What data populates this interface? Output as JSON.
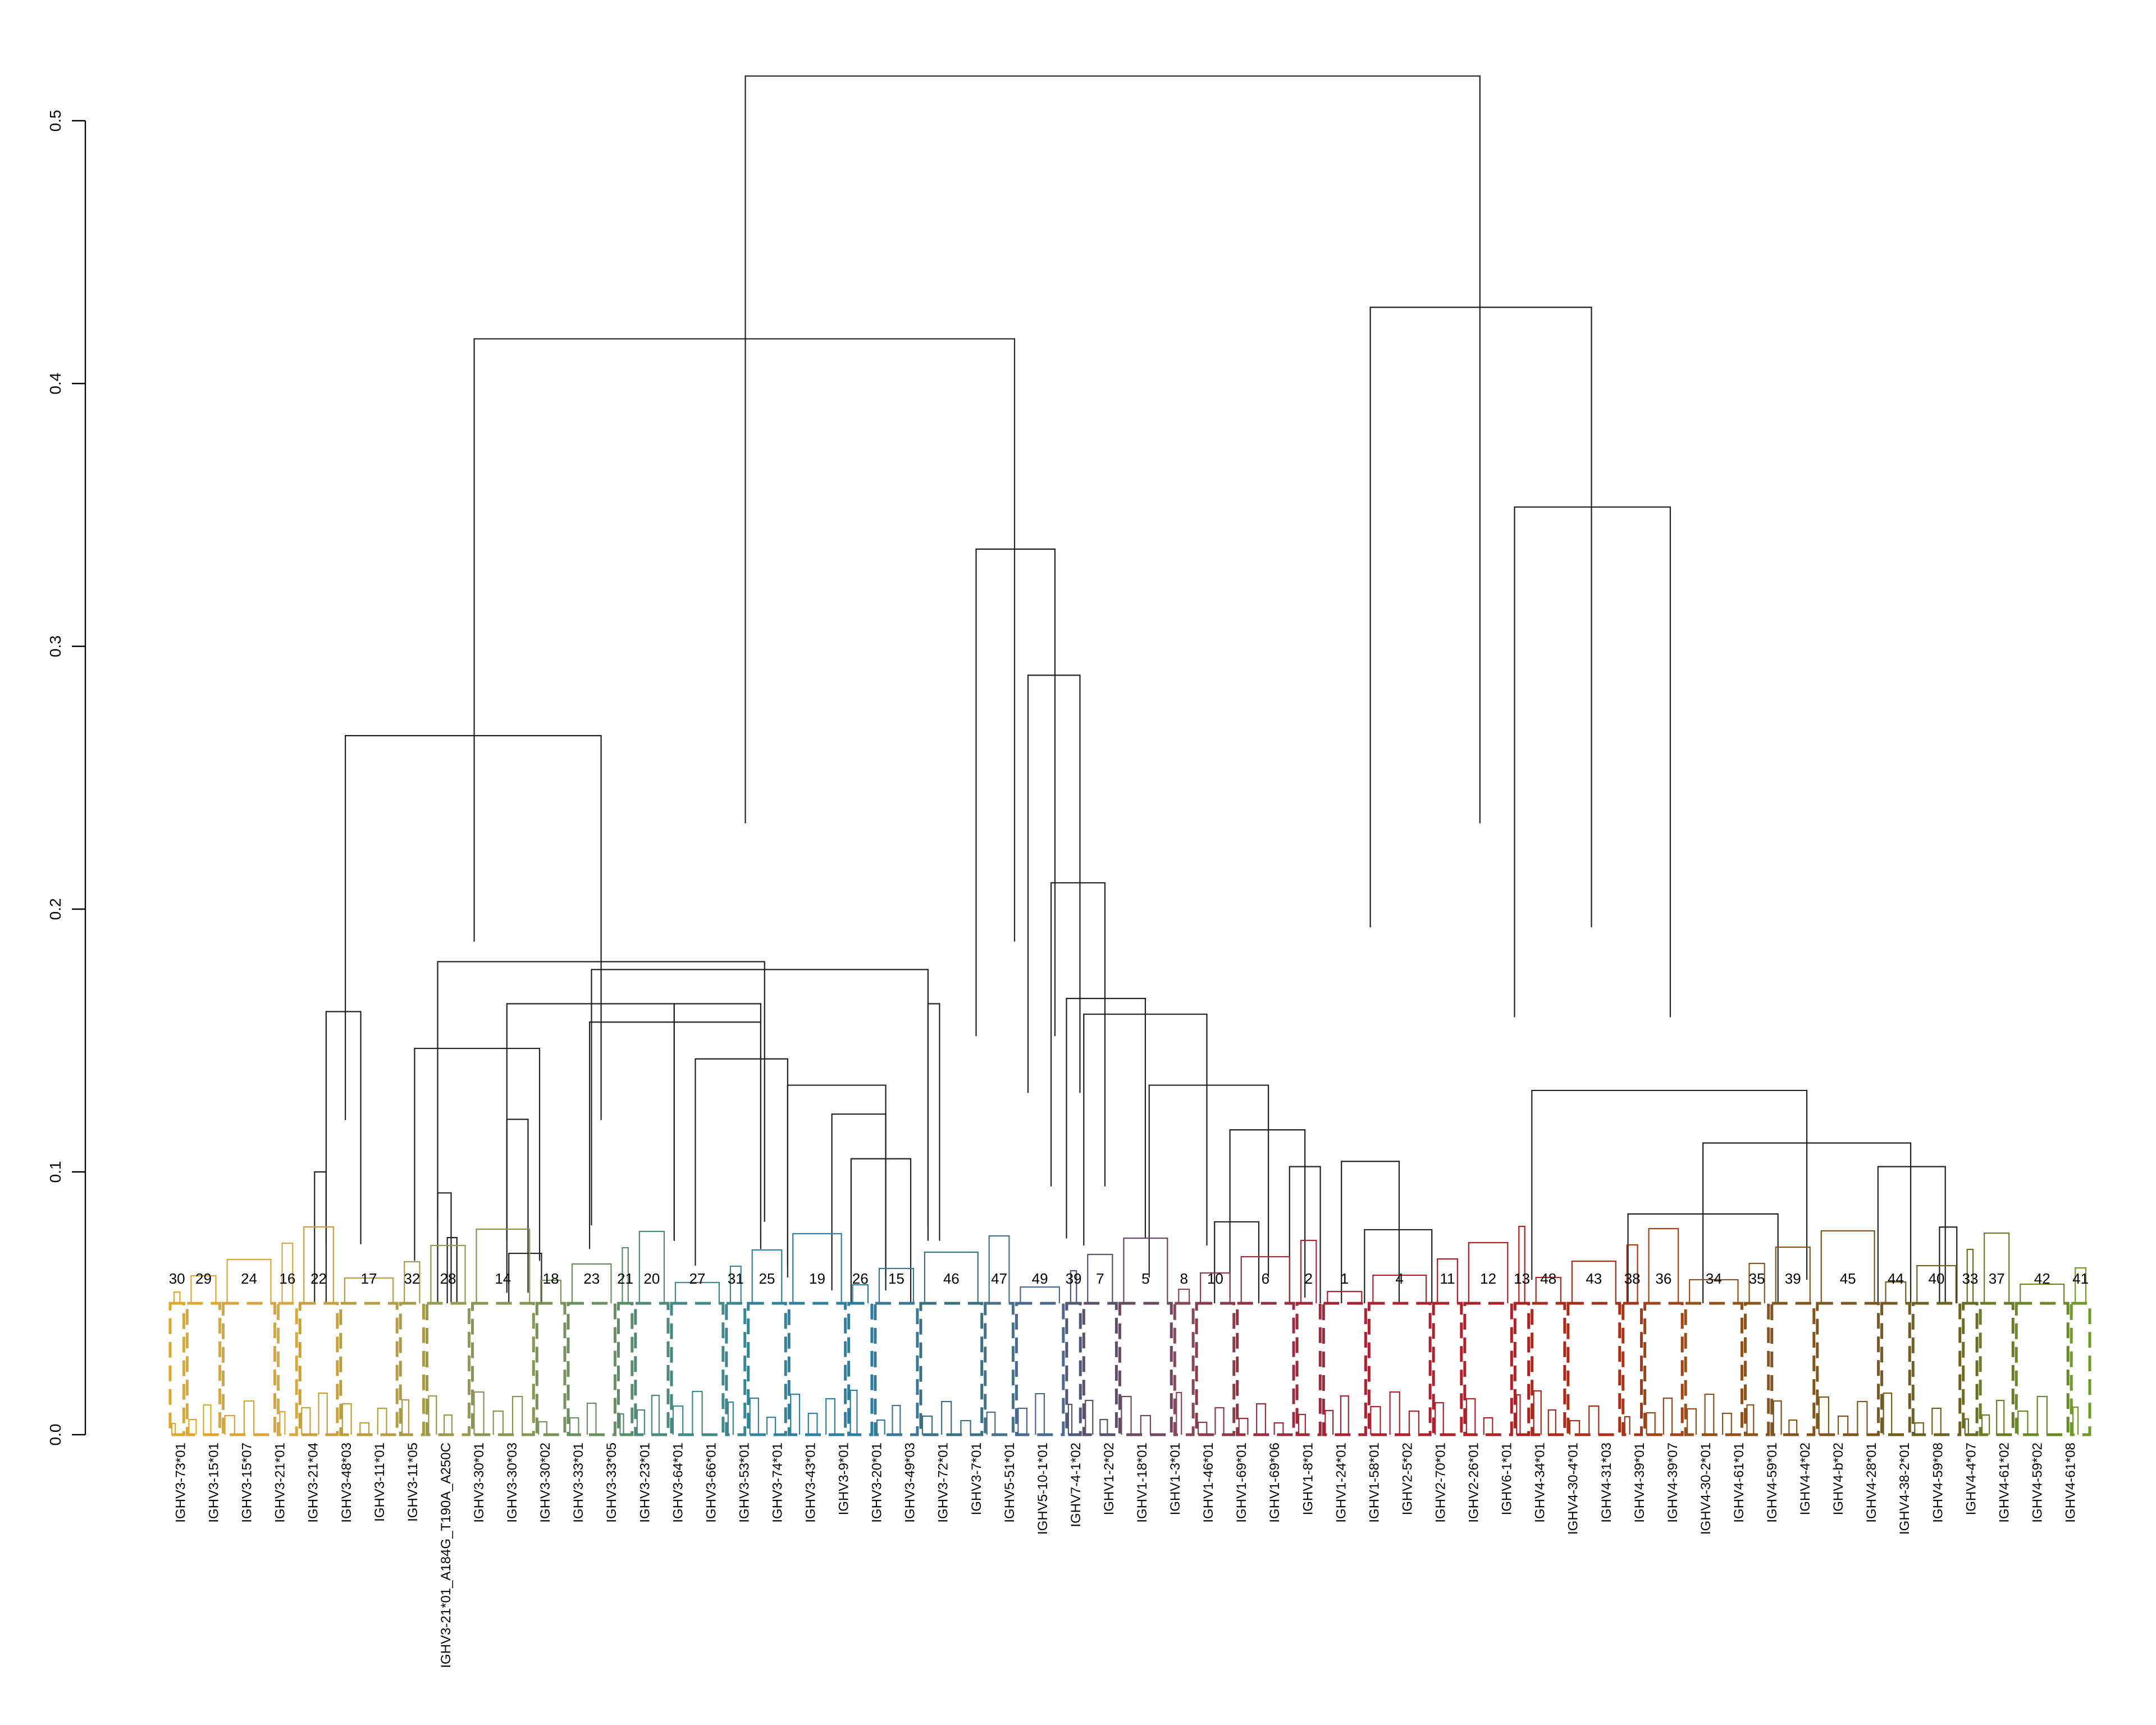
{
  "chart_data": {
    "type": "dendrogram",
    "title": "",
    "xlabel": "",
    "ylabel": "",
    "ylim": [
      0,
      0.52
    ],
    "y_ticks": [
      "0.0",
      "0.1",
      "0.2",
      "0.3",
      "0.4",
      "0.5"
    ],
    "cut_height": 0.05,
    "merges": [
      {
        "x1": 0.082,
        "x2": 0.1,
        "height": 0.161
      },
      {
        "x1": 0.076,
        "x2": 0.082,
        "height": 0.1
      },
      {
        "x1": 0.128,
        "x2": 0.193,
        "height": 0.147
      },
      {
        "x1": 0.092,
        "x2": 0.225,
        "height": 0.266
      },
      {
        "x1": 0.14,
        "x2": 0.147,
        "height": 0.092
      },
      {
        "x1": 0.145,
        "x2": 0.15,
        "height": 0.075
      },
      {
        "x1": 0.176,
        "x2": 0.187,
        "height": 0.12
      },
      {
        "x1": 0.177,
        "x2": 0.194,
        "height": 0.069
      },
      {
        "x1": 0.176,
        "x2": 0.263,
        "height": 0.164
      },
      {
        "x1": 0.22,
        "x2": 0.395,
        "height": 0.177
      },
      {
        "x1": 0.14,
        "x2": 0.31,
        "height": 0.18
      },
      {
        "x1": 0.219,
        "x2": 0.308,
        "height": 0.157
      },
      {
        "x1": 0.263,
        "x2": 0.308,
        "height": 0.164
      },
      {
        "x1": 0.274,
        "x2": 0.322,
        "height": 0.143
      },
      {
        "x1": 0.322,
        "x2": 0.373,
        "height": 0.133
      },
      {
        "x1": 0.345,
        "x2": 0.373,
        "height": 0.122
      },
      {
        "x1": 0.355,
        "x2": 0.386,
        "height": 0.105
      },
      {
        "x1": 0.395,
        "x2": 0.401,
        "height": 0.164
      },
      {
        "x1": 0.159,
        "x2": 0.44,
        "height": 0.417
      },
      {
        "x1": 0.42,
        "x2": 0.461,
        "height": 0.337
      },
      {
        "x1": 0.447,
        "x2": 0.474,
        "height": 0.289
      },
      {
        "x1": 0.459,
        "x2": 0.487,
        "height": 0.21
      },
      {
        "x1": 0.467,
        "x2": 0.508,
        "height": 0.166
      },
      {
        "x1": 0.476,
        "x2": 0.54,
        "height": 0.16
      },
      {
        "x1": 0.51,
        "x2": 0.572,
        "height": 0.133
      },
      {
        "x1": 0.552,
        "x2": 0.591,
        "height": 0.116
      },
      {
        "x1": 0.544,
        "x2": 0.567,
        "height": 0.081
      },
      {
        "x1": 0.583,
        "x2": 0.599,
        "height": 0.102
      },
      {
        "x1": 0.61,
        "x2": 0.64,
        "height": 0.104
      },
      {
        "x1": 0.622,
        "x2": 0.657,
        "height": 0.078
      },
      {
        "x1": 0.3,
        "x2": 0.682,
        "height": 0.517
      },
      {
        "x1": 0.625,
        "x2": 0.74,
        "height": 0.429
      },
      {
        "x1": 0.7,
        "x2": 0.781,
        "height": 0.353
      },
      {
        "x1": 0.709,
        "x2": 0.852,
        "height": 0.131
      },
      {
        "x1": 0.798,
        "x2": 0.906,
        "height": 0.111
      },
      {
        "x1": 0.759,
        "x2": 0.837,
        "height": 0.084
      },
      {
        "x1": 0.889,
        "x2": 0.924,
        "height": 0.102
      },
      {
        "x1": 0.921,
        "x2": 0.93,
        "height": 0.079
      }
    ],
    "clusters": [
      {
        "label": "30",
        "color": "#e0a828"
      },
      {
        "label": "29",
        "color": "#e0a828"
      },
      {
        "label": "24",
        "color": "#d9a53a"
      },
      {
        "label": "16",
        "color": "#d6aa40"
      },
      {
        "label": "22",
        "color": "#c8a040"
      },
      {
        "label": "17",
        "color": "#b89e40"
      },
      {
        "label": "32",
        "color": "#a89a48"
      },
      {
        "label": "28",
        "color": "#98984e"
      },
      {
        "label": "14",
        "color": "#889654"
      },
      {
        "label": "18",
        "color": "#78925a"
      },
      {
        "label": "23",
        "color": "#6a9060"
      },
      {
        "label": "21",
        "color": "#5a8e6a"
      },
      {
        "label": "20",
        "color": "#4e8a78"
      },
      {
        "label": "27",
        "color": "#408a88"
      },
      {
        "label": "31",
        "color": "#3a8690"
      },
      {
        "label": "25",
        "color": "#348298"
      },
      {
        "label": "19",
        "color": "#2e80a0"
      },
      {
        "label": "26",
        "color": "#2a7ea4"
      },
      {
        "label": "15",
        "color": "#3a7894"
      },
      {
        "label": "46",
        "color": "#3a7080"
      },
      {
        "label": "47",
        "color": "#4a7088"
      },
      {
        "label": "49",
        "color": "#4a6890"
      },
      {
        "label": "39",
        "color": "#505878"
      },
      {
        "label": "7",
        "color": "#5a5068"
      },
      {
        "label": "5",
        "color": "#6a4a60"
      },
      {
        "label": "8",
        "color": "#884858"
      },
      {
        "label": "10",
        "color": "#8a3a48"
      },
      {
        "label": "6",
        "color": "#963040"
      },
      {
        "label": "2",
        "color": "#a02838"
      },
      {
        "label": "1",
        "color": "#a82434"
      },
      {
        "label": "4",
        "color": "#ae2230"
      },
      {
        "label": "11",
        "color": "#b0202c"
      },
      {
        "label": "12",
        "color": "#ac2228"
      },
      {
        "label": "13",
        "color": "#a82424"
      },
      {
        "label": "48",
        "color": "#a82a1c"
      },
      {
        "label": "43",
        "color": "#a82e18"
      },
      {
        "label": "38",
        "color": "#a83418"
      },
      {
        "label": "36",
        "color": "#a04418"
      },
      {
        "label": "34",
        "color": "#94501a"
      },
      {
        "label": "35",
        "color": "#8c521c"
      },
      {
        "label": "39",
        "color": "#84541e"
      },
      {
        "label": "45",
        "color": "#7c5820"
      },
      {
        "label": "44",
        "color": "#745c20"
      },
      {
        "label": "40",
        "color": "#6e6222"
      },
      {
        "label": "33",
        "color": "#6a6c24"
      },
      {
        "label": "37",
        "color": "#6a7c24"
      },
      {
        "label": "42",
        "color": "#6a8826"
      },
      {
        "label": "41",
        "color": "#6e9a28"
      }
    ],
    "leaf_labels": [
      "IGHV3-73*01",
      "IGHV3-15*01",
      "IGHV3-15*07",
      "IGHV3-21*01",
      "IGHV3-21*04",
      "IGHV3-48*03",
      "IGHV3-11*01",
      "IGHV3-11*05",
      "IGHV3-21*01_A184G_T190A_A250C",
      "IGHV3-30*01",
      "IGHV3-30*03",
      "IGHV3-30*02",
      "IGHV3-33*01",
      "IGHV3-33*05",
      "IGHV3-23*01",
      "IGHV3-64*01",
      "IGHV3-66*01",
      "IGHV3-53*01",
      "IGHV3-74*01",
      "IGHV3-43*01",
      "IGHV3-9*01",
      "IGHV3-20*01",
      "IGHV3-49*03",
      "IGHV3-72*01",
      "IGHV3-7*01",
      "IGHV5-51*01",
      "IGHV5-10-1*01",
      "IGHV7-4-1*02",
      "IGHV1-2*02",
      "IGHV1-18*01",
      "IGHV1-3*01",
      "IGHV1-46*01",
      "IGHV1-69*01",
      "IGHV1-69*06",
      "IGHV1-8*01",
      "IGHV1-24*01",
      "IGHV1-58*01",
      "IGHV2-5*02",
      "IGHV2-70*01",
      "IGHV2-26*01",
      "IGHV6-1*01",
      "IGHV4-34*01",
      "IGHV4-30-4*01",
      "IGHV4-31*03",
      "IGHV4-39*01",
      "IGHV4-39*07",
      "IGHV4-30-2*01",
      "IGHV4-61*01",
      "IGHV4-59*01",
      "IGHV4-4*02",
      "IGHV4-b*02",
      "IGHV4-28*01",
      "IGHV4-38-2*01",
      "IGHV4-59*08",
      "IGHV4-4*07",
      "IGHV4-61*02",
      "IGHV4-59*02",
      "IGHV4-61*08"
    ]
  }
}
